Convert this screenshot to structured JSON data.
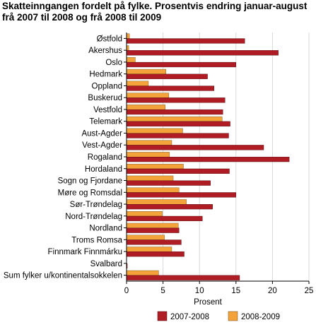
{
  "chart_data": {
    "type": "bar",
    "orientation": "horizontal",
    "title_lines": [
      "Skatteinngangen fordelt på fylke. Prosentvis endring januar-august",
      "frå 2007 til 2008 og frå 2008 til 2009"
    ],
    "xlabel": "Prosent",
    "xlim": [
      0,
      25
    ],
    "xticks": [
      0,
      5,
      10,
      15,
      20,
      25
    ],
    "grid": "vertical",
    "legend_position": "bottom",
    "categories": [
      "Østfold",
      "Akershus",
      "Oslo",
      "Hedmark",
      "Oppland",
      "Buskerud",
      "Vestfold",
      "Telemark",
      "Aust-Agder",
      "Vest-Agder",
      "Rogaland",
      "Hordaland",
      "Sogn og Fjordane",
      "Møre og Romsdal",
      "Sør-Trøndelag",
      "Nord-Trøndelag",
      "Nordland",
      "Troms Romsa",
      "Finnmark Finnmárku",
      "Svalbard",
      "Sum fylker u/kontinentalsokkelen"
    ],
    "series": [
      {
        "name": "2007-2008",
        "color": "#b01c24",
        "values": [
          16.2,
          20.8,
          15.0,
          11.1,
          12.0,
          13.5,
          13.2,
          14.2,
          14.0,
          18.8,
          22.3,
          14.1,
          11.5,
          15.0,
          11.8,
          10.4,
          7.2,
          7.5,
          7.9,
          0.1,
          15.5
        ]
      },
      {
        "name": "2008-2009",
        "color": "#f3a33a",
        "values": [
          0.4,
          0.3,
          1.2,
          5.4,
          3.0,
          5.8,
          5.3,
          13.1,
          7.7,
          6.2,
          5.9,
          7.8,
          6.4,
          7.2,
          8.2,
          4.9,
          7.1,
          5.2,
          6.2,
          0.0,
          4.4
        ]
      }
    ]
  }
}
